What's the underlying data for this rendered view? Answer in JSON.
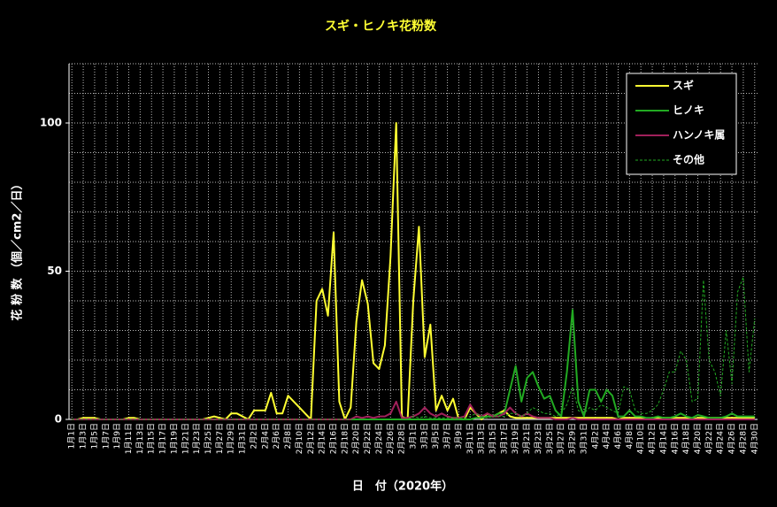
{
  "chart_data": {
    "type": "line",
    "title": "スギ・ヒノキ花粉数",
    "y_label": "花 粉 数 （個／cm2／日）",
    "x_label": "日　付（2020年）",
    "categories": [
      "1月1日",
      null,
      "1月3日",
      null,
      "1月5日",
      null,
      "1月7日",
      null,
      "1月9日",
      null,
      "1月11日",
      null,
      "1月13日",
      null,
      "1月15日",
      null,
      "1月17日",
      null,
      "1月19日",
      null,
      "1月21日",
      null,
      "1月23日",
      null,
      "1月25日",
      null,
      "1月27日",
      null,
      "1月29日",
      null,
      "1月31日",
      null,
      "2月2日",
      null,
      "2月4日",
      null,
      "2月6日",
      null,
      "2月8日",
      null,
      "2月10日",
      null,
      "2月12日",
      null,
      "2月14日",
      null,
      "2月16日",
      null,
      "2月18日",
      null,
      "2月20日",
      null,
      "2月22日",
      null,
      "2月24日",
      null,
      "2月26日",
      null,
      "2月28日",
      null,
      "3月1日",
      null,
      "3月3日",
      null,
      "3月5日",
      null,
      "3月7日",
      null,
      "3月9日",
      null,
      "3月11日",
      null,
      "3月13日",
      null,
      "3月15日",
      null,
      "3月17日",
      null,
      "3月19日",
      null,
      "3月21日",
      null,
      "3月23日",
      null,
      "3月25日",
      null,
      "3月27日",
      null,
      "3月29日",
      null,
      "3月31日",
      null,
      "4月2日",
      null,
      "4月4日",
      null,
      "4月6日",
      null,
      "4月8日",
      null,
      "4月10日",
      null,
      "4月12日",
      null,
      "4月14日",
      null,
      "4月16日",
      null,
      "4月18日",
      null,
      "4月20日",
      null,
      "4月22日",
      null,
      "4月24日",
      null,
      "4月26日",
      null,
      "4月28日",
      null,
      "4月30日"
    ],
    "series": [
      {
        "name": "スギ",
        "color": "#ffff33",
        "dashed": false,
        "values": [
          0,
          0,
          0.5,
          0.5,
          0.5,
          0,
          0,
          0,
          0,
          0,
          0.5,
          0.5,
          0,
          0,
          0,
          0,
          0,
          0,
          0,
          0,
          0,
          0,
          0,
          0,
          0.5,
          1,
          0.5,
          0,
          2,
          2,
          1,
          0,
          3,
          3,
          3,
          9,
          2,
          2,
          8,
          6,
          4,
          2,
          0,
          40,
          44,
          35,
          63,
          6,
          0,
          4,
          33,
          47,
          39,
          19,
          17,
          25,
          55,
          100,
          1,
          0,
          40,
          65,
          21,
          32,
          3,
          8,
          3,
          7,
          0,
          0,
          4,
          2,
          0,
          2,
          1,
          2,
          3,
          1,
          0.5,
          0.5,
          0.5,
          0.5,
          0.5,
          0.5,
          0.5,
          0.5,
          0.5,
          0.5,
          0.5,
          0.5,
          0.5,
          0.5,
          0.5,
          0.5,
          0.5,
          0.5,
          0,
          0.5,
          0.5,
          0.5,
          0.5,
          0,
          0.5,
          0.5,
          0.5,
          0.5,
          0.5,
          0.5,
          0.5,
          0,
          0.5,
          0.5,
          0.5,
          0.5,
          0.5,
          0.5,
          0.5,
          0.5,
          0.5,
          0.5,
          0.5
        ]
      },
      {
        "name": "ヒノキ",
        "color": "#22aa22",
        "dashed": false,
        "values": [
          0,
          0,
          0,
          0,
          0,
          0,
          0,
          0,
          0,
          0,
          0,
          0,
          0,
          0,
          0,
          0,
          0,
          0,
          0,
          0,
          0,
          0,
          0,
          0,
          0,
          0,
          0,
          0,
          0,
          0,
          0,
          0,
          0,
          0,
          0,
          0,
          0,
          0,
          0,
          0,
          0,
          0,
          0,
          0,
          0,
          0,
          0,
          0,
          0,
          0,
          0,
          0,
          0,
          0,
          0,
          0,
          0,
          0,
          0,
          0,
          0,
          0,
          0,
          0,
          0,
          0,
          0,
          0,
          0,
          0,
          0,
          0.5,
          0.5,
          1,
          1,
          2,
          2,
          10,
          18,
          6,
          14,
          16,
          11,
          7,
          8,
          3,
          1,
          16,
          37,
          6,
          1,
          10,
          10,
          6,
          10,
          8,
          1,
          1,
          3,
          1,
          1,
          0.5,
          0.5,
          1,
          0.5,
          0.5,
          1,
          2,
          1,
          0.5,
          1.5,
          1,
          0.5,
          0.5,
          0.5,
          1,
          2,
          1,
          1,
          1,
          1
        ]
      },
      {
        "name": "ハンノキ属",
        "color": "#a0205a",
        "dashed": false,
        "values": [
          0,
          0,
          0,
          0,
          0,
          0,
          0,
          0,
          0,
          0,
          0,
          0,
          0,
          0,
          0,
          0,
          0,
          0,
          0,
          0,
          0,
          0,
          0,
          0,
          0,
          0,
          0,
          0,
          0,
          0,
          0,
          0,
          0,
          0,
          0,
          0,
          0,
          0,
          0,
          0,
          0,
          0,
          0,
          0,
          0,
          0,
          0,
          0,
          0,
          0,
          1,
          0.5,
          1,
          0.5,
          1,
          1,
          2,
          6,
          0.5,
          0.5,
          1,
          2,
          4,
          2,
          1,
          2,
          1,
          0.5,
          0.5,
          1,
          5,
          2,
          1,
          2,
          1,
          1,
          2,
          4,
          2,
          1,
          2,
          1,
          0.5,
          0.5,
          0.5,
          0,
          0,
          0,
          0.5,
          0,
          0,
          0,
          0,
          0,
          0,
          0,
          0,
          0,
          0,
          0,
          0,
          0,
          0,
          0,
          0,
          0,
          0,
          0,
          0,
          0,
          0,
          0,
          0,
          0,
          0,
          0,
          0,
          0,
          0,
          0,
          0
        ]
      },
      {
        "name": "その他",
        "color": "#22aa22",
        "dashed": true,
        "values": [
          0,
          0,
          0,
          0,
          0,
          0,
          0,
          0,
          0,
          0,
          0,
          0,
          0,
          0,
          0,
          0,
          0,
          0,
          0,
          0,
          0,
          0,
          0,
          0,
          0,
          0,
          0,
          0,
          0,
          0,
          0,
          0,
          0,
          0,
          0,
          0,
          0,
          0,
          0,
          0,
          0,
          0,
          0,
          0,
          0,
          0,
          0,
          0,
          0,
          0,
          0,
          0,
          0,
          0,
          0,
          0,
          0,
          0,
          0,
          0,
          1,
          0.5,
          1,
          0.5,
          0.5,
          0.5,
          0.5,
          0.5,
          0.5,
          0.5,
          1,
          2,
          1,
          0.5,
          1,
          1,
          1,
          2,
          2,
          1,
          2,
          4,
          3,
          2,
          2,
          1,
          2,
          5,
          11,
          3,
          2,
          4,
          3,
          5,
          4,
          3,
          2,
          11,
          10,
          3,
          2,
          2,
          3,
          5,
          10,
          16,
          16,
          23,
          20,
          6,
          7,
          47,
          20,
          16,
          8,
          30,
          12,
          43,
          48,
          16,
          34
        ]
      }
    ],
    "ylim": [
      0,
      120
    ],
    "yticks": [
      0,
      50,
      100
    ],
    "ygrid": [
      10,
      20,
      30,
      40,
      50,
      60,
      70,
      80,
      90,
      100,
      110,
      120
    ],
    "legend": "top-right"
  }
}
